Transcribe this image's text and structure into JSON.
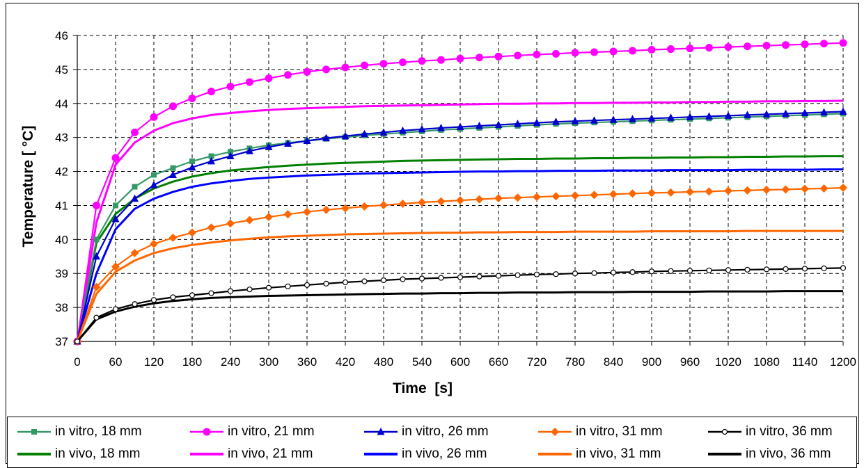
{
  "chart_data": {
    "type": "line",
    "xlabel": "Time  [s]",
    "ylabel": "Temperature [ °C]",
    "xlim": [
      0,
      1200
    ],
    "ylim": [
      37,
      46
    ],
    "x_ticks": [
      "0",
      "60",
      "120",
      "180",
      "240",
      "300",
      "360",
      "420",
      "480",
      "540",
      "600",
      "660",
      "720",
      "780",
      "840",
      "900",
      "960",
      "1020",
      "1080",
      "1140",
      "1200"
    ],
    "y_ticks": [
      "37",
      "38",
      "39",
      "40",
      "41",
      "42",
      "43",
      "44",
      "45",
      "46"
    ],
    "grid": true,
    "legend_position": "bottom",
    "series": [
      {
        "name": "in vitro, 18 mm",
        "color": "#339966",
        "marker": "square",
        "x_step": 30,
        "values": [
          37.0,
          40.0,
          41.0,
          41.55,
          41.9,
          42.1,
          42.3,
          42.45,
          42.58,
          42.68,
          42.77,
          42.84,
          42.9,
          42.96,
          43.01,
          43.06,
          43.1,
          43.14,
          43.18,
          43.22,
          43.25,
          43.28,
          43.31,
          43.34,
          43.37,
          43.4,
          43.42,
          43.44,
          43.46,
          43.48,
          43.5,
          43.52,
          43.54,
          43.56,
          43.58,
          43.6,
          43.62,
          43.64,
          43.66,
          43.68,
          43.7
        ]
      },
      {
        "name": "in vitro, 21 mm",
        "color": "#FF00FF",
        "marker": "circle",
        "x_step": 30,
        "values": [
          37.0,
          41.0,
          42.4,
          43.15,
          43.6,
          43.92,
          44.15,
          44.35,
          44.5,
          44.63,
          44.74,
          44.84,
          44.93,
          45.0,
          45.06,
          45.12,
          45.17,
          45.21,
          45.25,
          45.28,
          45.32,
          45.35,
          45.38,
          45.41,
          45.44,
          45.46,
          45.49,
          45.51,
          45.53,
          45.55,
          45.58,
          45.6,
          45.62,
          45.64,
          45.66,
          45.68,
          45.7,
          45.72,
          45.74,
          45.76,
          45.78
        ]
      },
      {
        "name": "in vitro, 26 mm",
        "color": "#0000CC",
        "marker": "triangle",
        "x_step": 30,
        "values": [
          37.0,
          39.5,
          40.6,
          41.2,
          41.6,
          41.9,
          42.12,
          42.3,
          42.45,
          42.6,
          42.72,
          42.82,
          42.9,
          42.98,
          43.04,
          43.1,
          43.15,
          43.2,
          43.24,
          43.28,
          43.31,
          43.34,
          43.37,
          43.4,
          43.43,
          43.46,
          43.48,
          43.5,
          43.52,
          43.54,
          43.56,
          43.58,
          43.6,
          43.62,
          43.64,
          43.66,
          43.68,
          43.7,
          43.72,
          43.74,
          43.76
        ]
      },
      {
        "name": "in vitro, 31 mm",
        "color": "#FF6600",
        "marker": "diamond",
        "x_step": 30,
        "values": [
          37.0,
          38.6,
          39.2,
          39.6,
          39.87,
          40.05,
          40.2,
          40.35,
          40.47,
          40.57,
          40.66,
          40.74,
          40.81,
          40.87,
          40.92,
          40.97,
          41.01,
          41.05,
          41.09,
          41.12,
          41.15,
          41.18,
          41.21,
          41.23,
          41.25,
          41.27,
          41.29,
          41.31,
          41.33,
          41.35,
          41.37,
          41.38,
          41.4,
          41.41,
          41.43,
          41.44,
          41.46,
          41.47,
          41.49,
          41.5,
          41.52
        ]
      },
      {
        "name": "in vitro, 36 mm",
        "color": "#000000",
        "marker": "open-circle",
        "x_step": 30,
        "values": [
          37.0,
          37.7,
          37.95,
          38.1,
          38.22,
          38.3,
          38.36,
          38.42,
          38.48,
          38.53,
          38.58,
          38.62,
          38.66,
          38.7,
          38.74,
          38.77,
          38.8,
          38.83,
          38.85,
          38.87,
          38.89,
          38.91,
          38.93,
          38.95,
          38.97,
          38.98,
          39.0,
          39.01,
          39.03,
          39.04,
          39.06,
          39.07,
          39.08,
          39.09,
          39.1,
          39.11,
          39.12,
          39.13,
          39.14,
          39.15,
          39.16
        ]
      },
      {
        "name": "in vivo, 18 mm",
        "color": "#008000",
        "marker": "none",
        "x_step": 30,
        "values": [
          37.0,
          39.9,
          40.75,
          41.2,
          41.5,
          41.7,
          41.85,
          41.95,
          42.03,
          42.08,
          42.13,
          42.17,
          42.2,
          42.23,
          42.25,
          42.27,
          42.29,
          42.31,
          42.32,
          42.33,
          42.34,
          42.35,
          42.36,
          42.37,
          42.37,
          42.38,
          42.38,
          42.39,
          42.39,
          42.4,
          42.4,
          42.41,
          42.41,
          42.42,
          42.42,
          42.43,
          42.43,
          42.44,
          42.44,
          42.45,
          42.45
        ]
      },
      {
        "name": "in vivo, 21 mm",
        "color": "#FF00FF",
        "marker": "none",
        "x_step": 30,
        "values": [
          37.0,
          40.5,
          42.2,
          42.85,
          43.2,
          43.42,
          43.56,
          43.66,
          43.72,
          43.77,
          43.81,
          43.84,
          43.86,
          43.88,
          43.9,
          43.92,
          43.93,
          43.94,
          43.95,
          43.96,
          43.97,
          43.98,
          43.99,
          43.99,
          44.0,
          44.0,
          44.01,
          44.01,
          44.02,
          44.02,
          44.03,
          44.03,
          44.04,
          44.04,
          44.05,
          44.05,
          44.06,
          44.06,
          44.07,
          44.07,
          44.08
        ]
      },
      {
        "name": "in vivo, 26 mm",
        "color": "#0000FF",
        "marker": "none",
        "x_step": 30,
        "values": [
          37.0,
          39.0,
          40.3,
          40.9,
          41.2,
          41.4,
          41.55,
          41.65,
          41.72,
          41.78,
          41.82,
          41.85,
          41.88,
          41.9,
          41.92,
          41.94,
          41.95,
          41.96,
          41.97,
          41.98,
          41.99,
          42.0,
          42.0,
          42.01,
          42.01,
          42.02,
          42.02,
          42.02,
          42.03,
          42.03,
          42.03,
          42.04,
          42.04,
          42.04,
          42.04,
          42.05,
          42.05,
          42.05,
          42.05,
          42.06,
          42.06
        ]
      },
      {
        "name": "in vivo, 31 mm",
        "color": "#FF6600",
        "marker": "none",
        "x_step": 30,
        "values": [
          37.0,
          38.4,
          39.05,
          39.38,
          39.6,
          39.74,
          39.84,
          39.91,
          39.97,
          40.02,
          40.06,
          40.09,
          40.11,
          40.13,
          40.15,
          40.16,
          40.17,
          40.18,
          40.19,
          40.2,
          40.2,
          40.21,
          40.21,
          40.22,
          40.22,
          40.22,
          40.23,
          40.23,
          40.23,
          40.23,
          40.24,
          40.24,
          40.24,
          40.24,
          40.24,
          40.25,
          40.25,
          40.25,
          40.25,
          40.25,
          40.25
        ]
      },
      {
        "name": "in vivo, 36 mm",
        "color": "#000000",
        "marker": "none",
        "x_step": 30,
        "values": [
          37.0,
          37.65,
          37.88,
          38.02,
          38.12,
          38.19,
          38.24,
          38.28,
          38.3,
          38.32,
          38.34,
          38.35,
          38.36,
          38.37,
          38.38,
          38.39,
          38.4,
          38.41,
          38.41,
          38.42,
          38.42,
          38.43,
          38.43,
          38.44,
          38.44,
          38.44,
          38.45,
          38.45,
          38.45,
          38.46,
          38.46,
          38.46,
          38.46,
          38.47,
          38.47,
          38.47,
          38.47,
          38.48,
          38.48,
          38.48,
          38.48
        ]
      }
    ]
  },
  "legend": {
    "items": [
      {
        "label": "in vitro, 18 mm"
      },
      {
        "label": "in vitro, 21 mm"
      },
      {
        "label": "in vitro, 26 mm"
      },
      {
        "label": "in vitro, 31 mm"
      },
      {
        "label": "in vitro, 36 mm"
      },
      {
        "label": "in vivo, 18 mm"
      },
      {
        "label": "in vivo, 21 mm"
      },
      {
        "label": "in vivo, 26 mm"
      },
      {
        "label": "in vivo, 31 mm"
      },
      {
        "label": "in vivo, 36 mm"
      }
    ]
  }
}
